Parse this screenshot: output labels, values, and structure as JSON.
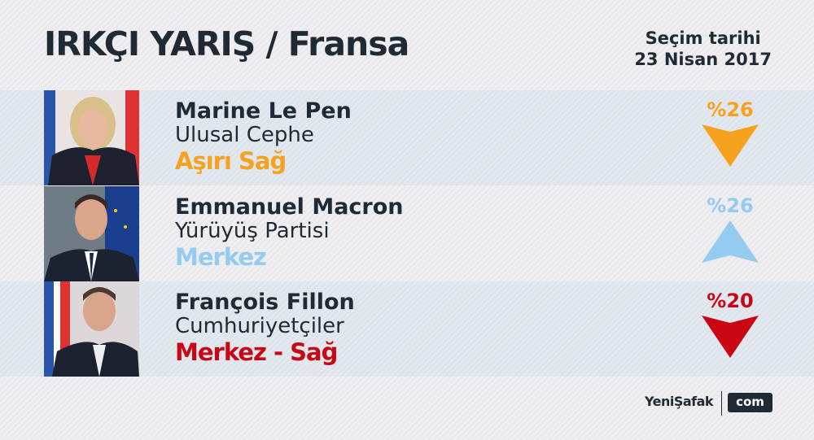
{
  "header": {
    "title": "IRKÇI YARIŞ / Fransa",
    "date_line1": "Seçim tarihi",
    "date_line2": "23 Nisan 2017"
  },
  "candidates": [
    {
      "name": "Marine Le Pen",
      "party": "Ulusal Cephe",
      "ideology": "Aşırı Sağ",
      "percent": "%26",
      "trend": "down",
      "color": "#f6a21f"
    },
    {
      "name": "Emmanuel Macron",
      "party": "Yürüyüş Partisi",
      "ideology": "Merkez",
      "percent": "%26",
      "trend": "up",
      "color": "#94cbef"
    },
    {
      "name": "François Fillon",
      "party": "Cumhuriyetçiler",
      "ideology": "Merkez - Sağ",
      "percent": "%20",
      "trend": "down",
      "color": "#c90714"
    }
  ],
  "footer": {
    "logo": "YeniŞafak",
    "com": "com"
  }
}
